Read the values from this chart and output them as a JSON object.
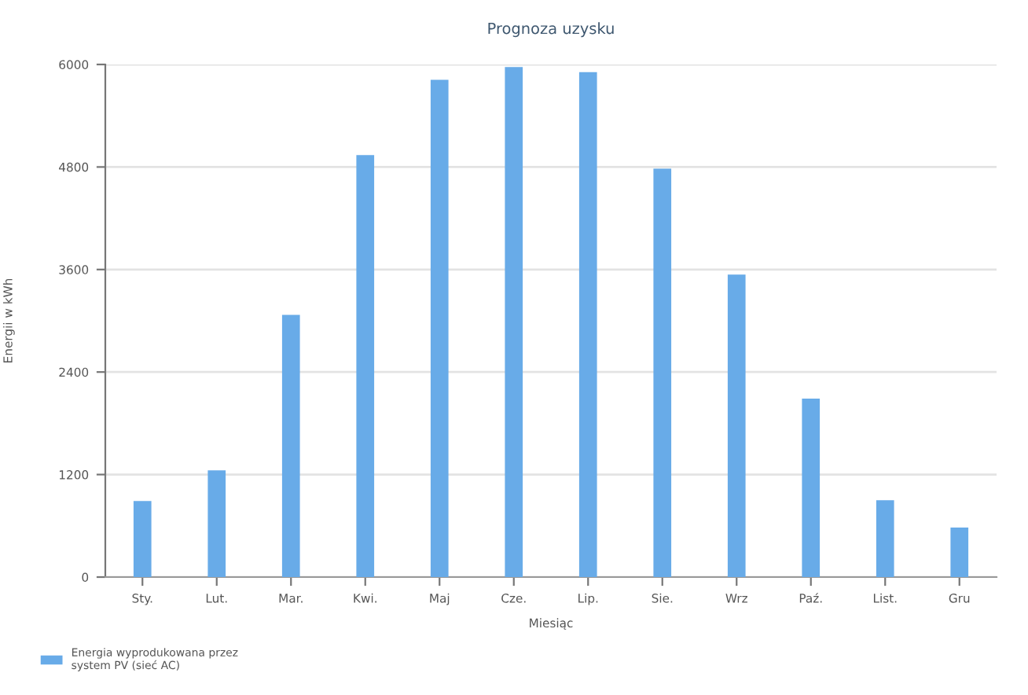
{
  "chart_data": {
    "type": "bar",
    "title": "Prognoza uzysku",
    "xlabel": "Miesiąc",
    "ylabel": "Energii w kWh",
    "categories": [
      "Sty.",
      "Lut.",
      "Mar.",
      "Kwi.",
      "Maj",
      "Cze.",
      "Lip.",
      "Sie.",
      "Wrz",
      "Paź.",
      "List.",
      "Gru"
    ],
    "series": [
      {
        "name": "Energia wyprodukowana przez\nsystem PV (sieć AC)",
        "color": "#68abe8",
        "values": [
          890,
          1250,
          3070,
          4940,
          5820,
          5970,
          5910,
          4780,
          3540,
          2090,
          900,
          580
        ]
      }
    ],
    "ylim": [
      0,
      6000
    ],
    "yticks": [
      0,
      1200,
      2400,
      3600,
      4800,
      6000
    ],
    "grid": "y",
    "legend": "bottom left"
  }
}
